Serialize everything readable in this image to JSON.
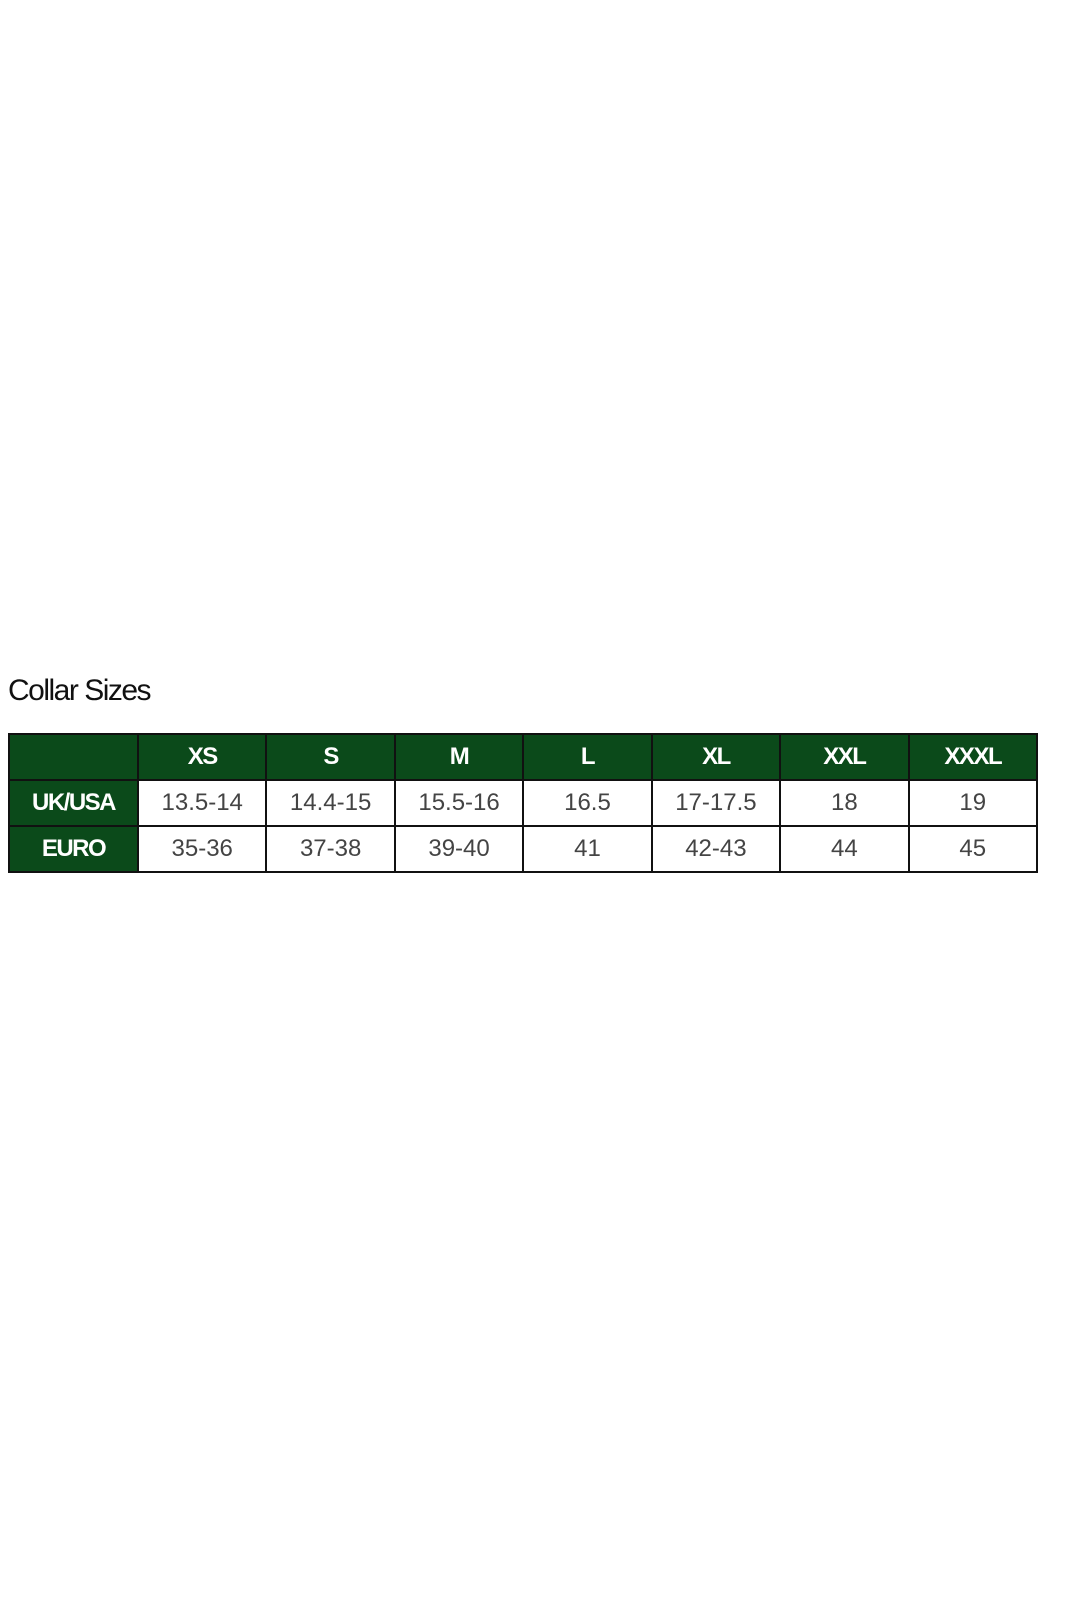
{
  "title": "Collar Sizes",
  "table": {
    "header_color": "#0b4a1a",
    "columns": [
      "",
      "XS",
      "S",
      "M",
      "L",
      "XL",
      "XXL",
      "XXXL"
    ],
    "rows": [
      {
        "label": "UK/USA",
        "cells": [
          "13.5-14",
          "14.4-15",
          "15.5-16",
          "16.5",
          "17-17.5",
          "18",
          "19"
        ]
      },
      {
        "label": "EURO",
        "cells": [
          "35-36",
          "37-38",
          "39-40",
          "41",
          "42-43",
          "44",
          "45"
        ]
      }
    ]
  }
}
